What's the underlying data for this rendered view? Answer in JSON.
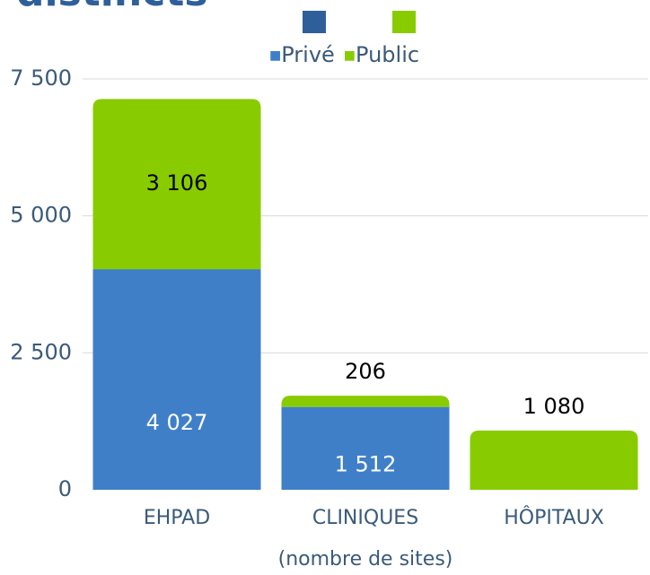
{
  "chart_data": {
    "type": "bar",
    "title": "distincts",
    "x_label": "(nombre de sites)",
    "categories": [
      "EHPAD",
      "CLINIQUES",
      "HÔPITAUX"
    ],
    "series": [
      {
        "name": "Privé",
        "color": "#3f7fc8",
        "legend_color": "#2e5f9a",
        "values": [
          4027,
          1512,
          null
        ],
        "value_labels": [
          "4 027",
          "1 512",
          null
        ]
      },
      {
        "name": "Public",
        "color": "#88cc00",
        "legend_color": "#88cc00",
        "values": [
          3106,
          206,
          1080
        ],
        "value_labels": [
          "3 106",
          "206",
          "1 080"
        ]
      }
    ],
    "stacked": true,
    "ylim": [
      0,
      7500
    ],
    "yticks": [
      0,
      {
        "value": 2500,
        "label": "2 500"
      },
      {
        "value": 5000,
        "label": "5 000"
      },
      {
        "value": 7500,
        "label": "7 500"
      }
    ],
    "grid": true
  }
}
